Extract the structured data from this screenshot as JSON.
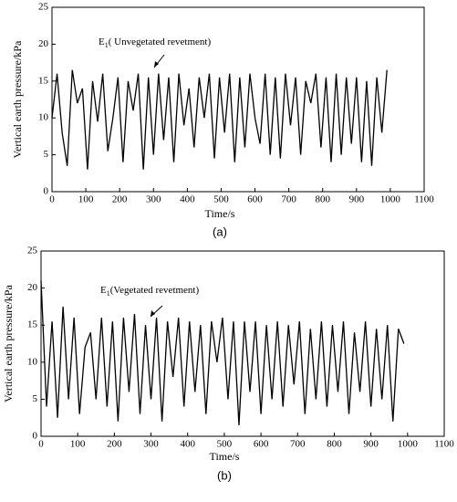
{
  "chart_data": [
    {
      "type": "line",
      "xlabel": "Time/s",
      "ylabel": "Vertical earth pressure/kPa",
      "panel": "(a)",
      "annotation": {
        "text": "E",
        "sub": "1",
        "rest": "( Unvegetated revetment)"
      },
      "xlim": [
        0,
        1100
      ],
      "ylim": [
        0,
        25
      ],
      "xticks": [
        0,
        100,
        200,
        300,
        400,
        500,
        600,
        700,
        800,
        900,
        1000,
        1100
      ],
      "yticks": [
        0,
        5,
        10,
        15,
        20,
        25
      ],
      "series": [
        {
          "color": "#000000",
          "x": [
            0,
            15,
            30,
            45,
            60,
            75,
            90,
            105,
            120,
            135,
            150,
            165,
            180,
            195,
            210,
            225,
            240,
            255,
            270,
            285,
            300,
            315,
            330,
            345,
            360,
            375,
            390,
            405,
            420,
            435,
            450,
            465,
            480,
            495,
            510,
            525,
            540,
            555,
            570,
            585,
            600,
            615,
            630,
            645,
            660,
            675,
            690,
            705,
            720,
            735,
            750,
            765,
            780,
            795,
            810,
            825,
            840,
            855,
            870,
            885,
            900,
            915,
            930,
            945,
            960,
            975,
            990
          ],
          "values": [
            10,
            16,
            8,
            3.5,
            16.5,
            12,
            14,
            3,
            15,
            9.5,
            16,
            5.5,
            10,
            15.5,
            4,
            15,
            11,
            16,
            3,
            15.5,
            5,
            16,
            7,
            15.5,
            4,
            16,
            9,
            14,
            6,
            15.5,
            10,
            16,
            4.5,
            15.5,
            8,
            16,
            4,
            15.5,
            6,
            16,
            10,
            6.5,
            16,
            5,
            15.5,
            4.5,
            16,
            9,
            15.5,
            5,
            15,
            12,
            16,
            6,
            15.5,
            4,
            16,
            5,
            15.5,
            6.5,
            15.5,
            4,
            15,
            3.5,
            15.5,
            8,
            16.5
          ]
        }
      ]
    },
    {
      "type": "line",
      "xlabel": "Time/s",
      "ylabel": "Vertical earth pressure/kPa",
      "panel": "(b)",
      "annotation": {
        "text": "E",
        "sub": "1",
        "rest": "(Vegetated revetment)"
      },
      "xlim": [
        0,
        1100
      ],
      "ylim": [
        0,
        25
      ],
      "xticks": [
        0,
        100,
        200,
        300,
        400,
        500,
        600,
        700,
        800,
        900,
        1000,
        1100
      ],
      "yticks": [
        0,
        5,
        10,
        15,
        20,
        25
      ],
      "series": [
        {
          "color": "#000000",
          "x": [
            0,
            15,
            30,
            45,
            60,
            75,
            90,
            105,
            120,
            135,
            150,
            165,
            180,
            195,
            210,
            225,
            240,
            255,
            270,
            285,
            300,
            315,
            330,
            345,
            360,
            375,
            390,
            405,
            420,
            435,
            450,
            465,
            480,
            495,
            510,
            525,
            540,
            555,
            570,
            585,
            600,
            615,
            630,
            645,
            660,
            675,
            690,
            705,
            720,
            735,
            750,
            765,
            780,
            795,
            810,
            825,
            840,
            855,
            870,
            885,
            900,
            915,
            930,
            945,
            960,
            975,
            990
          ],
          "values": [
            21,
            4,
            15.5,
            2.5,
            17.5,
            5,
            16,
            3,
            12,
            14,
            5,
            16,
            4,
            15.5,
            2,
            16,
            6,
            16.5,
            3,
            15,
            5,
            16,
            2,
            15.5,
            8,
            16,
            4,
            15.5,
            6,
            15,
            3,
            15.5,
            10,
            16,
            5,
            15.5,
            1.5,
            15.5,
            6,
            15.5,
            3,
            15,
            5,
            15.5,
            4,
            15,
            7,
            15.5,
            3,
            14.5,
            5,
            15.5,
            4,
            15,
            6,
            15.5,
            3,
            14,
            6,
            15.5,
            4,
            14.5,
            5,
            15,
            2,
            14.5,
            12.5
          ]
        }
      ]
    }
  ]
}
